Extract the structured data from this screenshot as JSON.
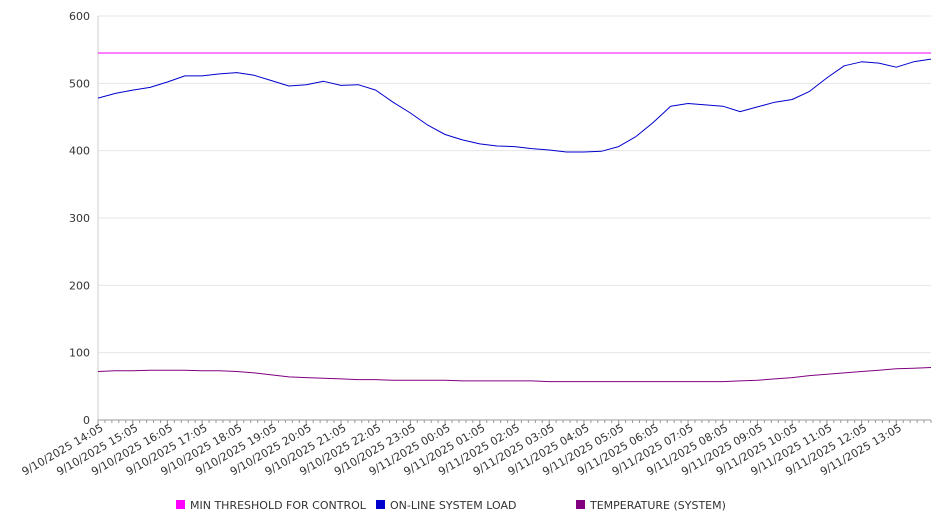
{
  "chart_data": {
    "type": "line",
    "title": "",
    "xlabel": "",
    "ylabel": "",
    "ylim": [
      0,
      600
    ],
    "y_ticks": [
      0,
      100,
      200,
      300,
      400,
      500,
      600
    ],
    "grid": true,
    "legend_position": "bottom",
    "x_ticks": [
      "9/10/2025 14:05",
      "9/10/2025 15:05",
      "9/10/2025 16:05",
      "9/10/2025 17:05",
      "9/10/2025 18:05",
      "9/10/2025 19:05",
      "9/10/2025 20:05",
      "9/10/2025 21:05",
      "9/10/2025 22:05",
      "9/10/2025 23:05",
      "9/11/2025 00:05",
      "9/11/2025 01:05",
      "9/11/2025 02:05",
      "9/11/2025 03:05",
      "9/11/2025 04:05",
      "9/11/2025 05:05",
      "9/11/2025 06:05",
      "9/11/2025 07:05",
      "9/11/2025 08:05",
      "9/11/2025 09:05",
      "9/11/2025 10:05",
      "9/11/2025 11:05",
      "9/11/2025 12:05",
      "9/11/2025 13:05"
    ],
    "x": [
      "9/10/2025 14:05",
      "9/10/2025 14:35",
      "9/10/2025 15:05",
      "9/10/2025 15:35",
      "9/10/2025 16:05",
      "9/10/2025 16:35",
      "9/10/2025 17:05",
      "9/10/2025 17:35",
      "9/10/2025 18:05",
      "9/10/2025 18:35",
      "9/10/2025 19:05",
      "9/10/2025 19:35",
      "9/10/2025 20:05",
      "9/10/2025 20:35",
      "9/10/2025 21:05",
      "9/10/2025 21:35",
      "9/10/2025 22:05",
      "9/10/2025 22:35",
      "9/10/2025 23:05",
      "9/10/2025 23:35",
      "9/11/2025 00:05",
      "9/11/2025 00:35",
      "9/11/2025 01:05",
      "9/11/2025 01:35",
      "9/11/2025 02:05",
      "9/11/2025 02:35",
      "9/11/2025 03:05",
      "9/11/2025 03:35",
      "9/11/2025 04:05",
      "9/11/2025 04:35",
      "9/11/2025 05:05",
      "9/11/2025 05:35",
      "9/11/2025 06:05",
      "9/11/2025 06:35",
      "9/11/2025 07:05",
      "9/11/2025 07:35",
      "9/11/2025 08:05",
      "9/11/2025 08:35",
      "9/11/2025 09:05",
      "9/11/2025 09:35",
      "9/11/2025 10:05",
      "9/11/2025 10:35",
      "9/11/2025 11:05",
      "9/11/2025 11:35",
      "9/11/2025 12:05",
      "9/11/2025 12:35",
      "9/11/2025 13:05",
      "9/11/2025 13:35",
      "9/11/2025 14:05"
    ],
    "series": [
      {
        "name": "MIN THRESHOLD FOR CONTROL",
        "color": "#ff00ff",
        "values": [
          545,
          545,
          545,
          545,
          545,
          545,
          545,
          545,
          545,
          545,
          545,
          545,
          545,
          545,
          545,
          545,
          545,
          545,
          545,
          545,
          545,
          545,
          545,
          545,
          545,
          545,
          545,
          545,
          545,
          545,
          545,
          545,
          545,
          545,
          545,
          545,
          545,
          545,
          545,
          545,
          545,
          545,
          545,
          545,
          545,
          545,
          545,
          545,
          545
        ]
      },
      {
        "name": "ON-LINE SYSTEM LOAD",
        "color": "#0000cc",
        "values": [
          478,
          485,
          490,
          494,
          502,
          511,
          511,
          514,
          516,
          512,
          504,
          496,
          498,
          503,
          497,
          498,
          490,
          472,
          456,
          438,
          424,
          416,
          410,
          407,
          406,
          403,
          401,
          398,
          398,
          399,
          406,
          421,
          442,
          466,
          470,
          468,
          466,
          458,
          465,
          472,
          476,
          488,
          508,
          526,
          532,
          530,
          524,
          532,
          536
        ]
      },
      {
        "name": "TEMPERATURE (SYSTEM)",
        "color": "#800080",
        "values": [
          72,
          73,
          73,
          74,
          74,
          74,
          73,
          73,
          72,
          70,
          67,
          64,
          63,
          62,
          61,
          60,
          60,
          59,
          59,
          59,
          59,
          58,
          58,
          58,
          58,
          58,
          57,
          57,
          57,
          57,
          57,
          57,
          57,
          57,
          57,
          57,
          57,
          58,
          59,
          61,
          63,
          66,
          68,
          70,
          72,
          74,
          76,
          77,
          78
        ]
      }
    ]
  }
}
